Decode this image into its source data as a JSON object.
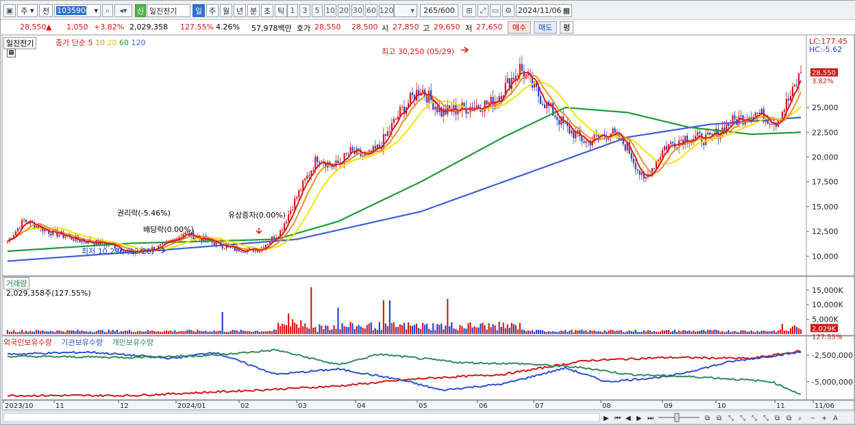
{
  "toolbar": {
    "market": "주",
    "kind": "전",
    "code": "103590",
    "name": "일진전기",
    "new_badge": "신",
    "periods": [
      "일",
      "주",
      "월",
      "년",
      "분",
      "초",
      "틱"
    ],
    "active_period": "일",
    "intervals": [
      "1",
      "3",
      "5",
      "10",
      "20",
      "30",
      "60",
      "120"
    ],
    "count": "265",
    "count_max": "/600",
    "date": "2024/11/06"
  },
  "quote": {
    "price": "28,550",
    "arrow": "▲",
    "change": "1,050",
    "rate": "+3.82%",
    "volume": "2,029,358",
    "vol_rate": "127.55%",
    "turnover": "4.26%",
    "amount": "57,978백만",
    "bid_label": "호가",
    "ask": "28,550",
    "bid": "28,500",
    "open_label": "시",
    "open": "27,850",
    "high_label": "고",
    "high": "29,650",
    "low_label": "저",
    "low": "27,650",
    "buy": "매수",
    "sell": "매도",
    "eval": "평"
  },
  "price_pane": {
    "title": "일진전기",
    "legend": {
      "label": "종가 단순",
      "p5": "5",
      "p10": "10",
      "p20": "20",
      "p60": "60",
      "p120": "120"
    },
    "lc": "LC:177.45",
    "hc": "HC:-5.62",
    "last_price": "28,550",
    "last_rate": "3.82%",
    "y_ticks": [
      "25,000",
      "22,500",
      "20,000",
      "17,500",
      "15,000",
      "12,500",
      "10,000"
    ],
    "annotations": {
      "high": "최고 30,250 (05/29)",
      "low": "최저 10,290 (12/26)",
      "rights": "권리락(-5.46%)",
      "dividend": "배당락(0.00%)",
      "capital": "유상증자(0.00%)"
    }
  },
  "volume_pane": {
    "title": "거래량",
    "value": "2,029,358주(127.55%)",
    "y_ticks": [
      "15,000K",
      "10,000K",
      "5,000K"
    ],
    "last": "2,029K",
    "last_rate": "127.55%"
  },
  "holding_pane": {
    "foreign": "외국인보유수량",
    "inst": "기관보유수량",
    "indiv": "개인보유수량",
    "y_ticks": [
      "-2,500,000",
      "-5,000,000"
    ]
  },
  "x_axis": [
    "2023/10",
    "11",
    "12",
    "2024/01",
    "02",
    "03",
    "04",
    "05",
    "06",
    "07",
    "08",
    "09",
    "10",
    "11",
    "11/06"
  ],
  "colors": {
    "up": "#d01616",
    "down": "#1b3fd6",
    "ma5": "#e01818",
    "ma10": "#f0901e",
    "ma20": "#f5e400",
    "ma60": "#1c9a38",
    "ma120": "#3a5fd8",
    "foreign": "#d01616",
    "inst": "#2c4fd6",
    "indiv": "#2e8b57"
  }
}
